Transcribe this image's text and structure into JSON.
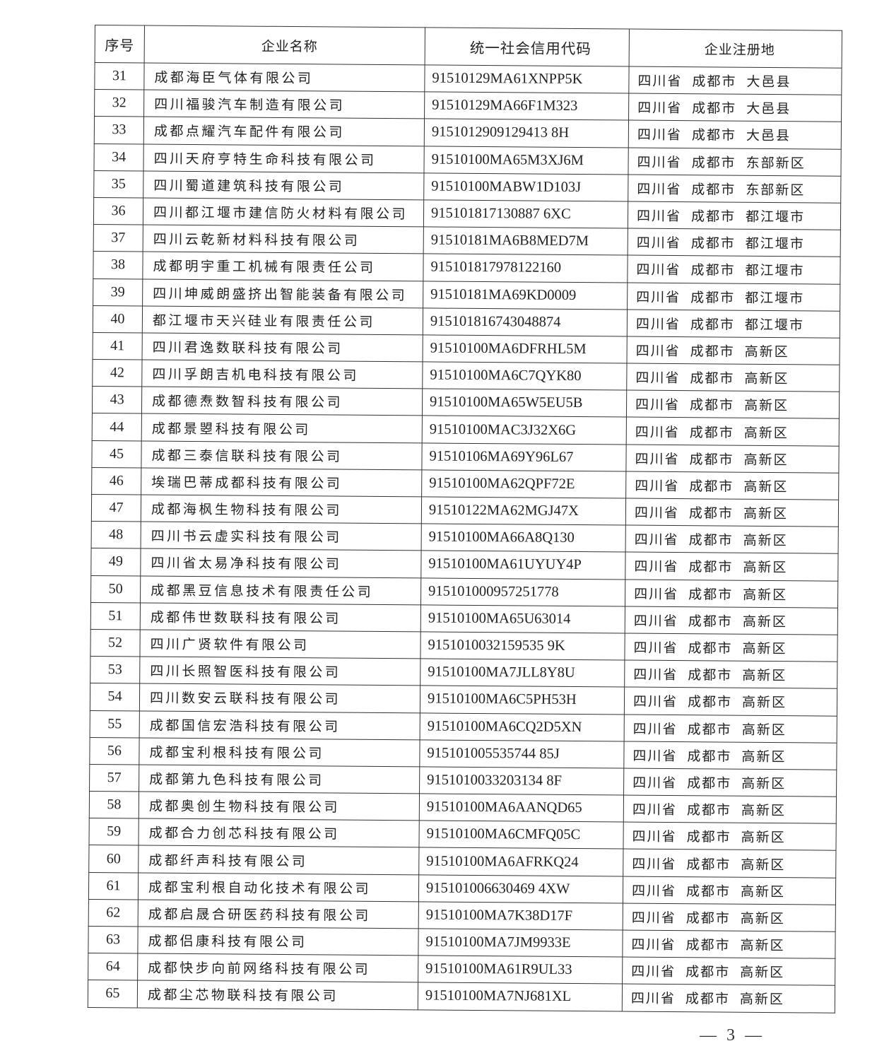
{
  "table": {
    "headers": [
      "序号",
      "企业名称",
      "统一社会信用代码",
      "企业注册地"
    ],
    "rows": [
      {
        "no": "31",
        "name": "成都海臣气体有限公司",
        "code": "91510129MA61XNPP5K",
        "province": "四川省",
        "city": "成都市",
        "district": "大邑县"
      },
      {
        "no": "32",
        "name": "四川福骏汽车制造有限公司",
        "code": "91510129MA66F1M323",
        "province": "四川省",
        "city": "成都市",
        "district": "大邑县"
      },
      {
        "no": "33",
        "name": "成都点耀汽车配件有限公司",
        "code": "9151012909129413 8H",
        "province": "四川省",
        "city": "成都市",
        "district": "大邑县"
      },
      {
        "no": "34",
        "name": "四川天府亨特生命科技有限公司",
        "code": "91510100MA65M3XJ6M",
        "province": "四川省",
        "city": "成都市",
        "district": "东部新区"
      },
      {
        "no": "35",
        "name": "四川蜀道建筑科技有限公司",
        "code": "91510100MABW1D103J",
        "province": "四川省",
        "city": "成都市",
        "district": "东部新区"
      },
      {
        "no": "36",
        "name": "四川都江堰市建信防火材料有限公司",
        "code": "915101817130887 6XC",
        "province": "四川省",
        "city": "成都市",
        "district": "都江堰市"
      },
      {
        "no": "37",
        "name": "四川云乾新材料科技有限公司",
        "code": "91510181MA6B8MED7M",
        "province": "四川省",
        "city": "成都市",
        "district": "都江堰市"
      },
      {
        "no": "38",
        "name": "成都明宇重工机械有限责任公司",
        "code": "915101817978122160",
        "province": "四川省",
        "city": "成都市",
        "district": "都江堰市"
      },
      {
        "no": "39",
        "name": "四川坤威朗盛挤出智能装备有限公司",
        "code": "91510181MA69KD0009",
        "province": "四川省",
        "city": "成都市",
        "district": "都江堰市"
      },
      {
        "no": "40",
        "name": "都江堰市天兴硅业有限责任公司",
        "code": "915101816743048874",
        "province": "四川省",
        "city": "成都市",
        "district": "都江堰市"
      },
      {
        "no": "41",
        "name": "四川君逸数联科技有限公司",
        "code": "91510100MA6DFRHL5M",
        "province": "四川省",
        "city": "成都市",
        "district": "高新区"
      },
      {
        "no": "42",
        "name": "四川孚朗吉机电科技有限公司",
        "code": "91510100MA6C7QYK80",
        "province": "四川省",
        "city": "成都市",
        "district": "高新区"
      },
      {
        "no": "43",
        "name": "成都德焘数智科技有限公司",
        "code": "91510100MA65W5EU5B",
        "province": "四川省",
        "city": "成都市",
        "district": "高新区"
      },
      {
        "no": "44",
        "name": "成都景曌科技有限公司",
        "code": "91510100MAC3J32X6G",
        "province": "四川省",
        "city": "成都市",
        "district": "高新区"
      },
      {
        "no": "45",
        "name": "成都三泰信联科技有限公司",
        "code": "91510106MA69Y96L67",
        "province": "四川省",
        "city": "成都市",
        "district": "高新区"
      },
      {
        "no": "46",
        "name": "埃瑞巴蒂成都科技有限公司",
        "code": "91510100MA62QPF72E",
        "province": "四川省",
        "city": "成都市",
        "district": "高新区"
      },
      {
        "no": "47",
        "name": "成都海枫生物科技有限公司",
        "code": "91510122MA62MGJ47X",
        "province": "四川省",
        "city": "成都市",
        "district": "高新区"
      },
      {
        "no": "48",
        "name": "四川书云虚实科技有限公司",
        "code": "91510100MA66A8Q130",
        "province": "四川省",
        "city": "成都市",
        "district": "高新区"
      },
      {
        "no": "49",
        "name": "四川省太易净科技有限公司",
        "code": "91510100MA61UYUY4P",
        "province": "四川省",
        "city": "成都市",
        "district": "高新区"
      },
      {
        "no": "50",
        "name": "成都黑豆信息技术有限责任公司",
        "code": "915101000957251778",
        "province": "四川省",
        "city": "成都市",
        "district": "高新区"
      },
      {
        "no": "51",
        "name": "成都伟世数联科技有限公司",
        "code": "91510100MA65U63014",
        "province": "四川省",
        "city": "成都市",
        "district": "高新区"
      },
      {
        "no": "52",
        "name": "四川广贤软件有限公司",
        "code": "9151010032159535 9K",
        "province": "四川省",
        "city": "成都市",
        "district": "高新区"
      },
      {
        "no": "53",
        "name": "四川长照智医科技有限公司",
        "code": "91510100MA7JLL8Y8U",
        "province": "四川省",
        "city": "成都市",
        "district": "高新区"
      },
      {
        "no": "54",
        "name": "四川数安云联科技有限公司",
        "code": "91510100MA6C5PH53H",
        "province": "四川省",
        "city": "成都市",
        "district": "高新区"
      },
      {
        "no": "55",
        "name": "成都国信宏浩科技有限公司",
        "code": "91510100MA6CQ2D5XN",
        "province": "四川省",
        "city": "成都市",
        "district": "高新区"
      },
      {
        "no": "56",
        "name": "成都宝利根科技有限公司",
        "code": "915101005535744 85J",
        "province": "四川省",
        "city": "成都市",
        "district": "高新区"
      },
      {
        "no": "57",
        "name": "成都第九色科技有限公司",
        "code": "9151010033203134 8F",
        "province": "四川省",
        "city": "成都市",
        "district": "高新区"
      },
      {
        "no": "58",
        "name": "成都奥创生物科技有限公司",
        "code": "91510100MA6AANQD65",
        "province": "四川省",
        "city": "成都市",
        "district": "高新区"
      },
      {
        "no": "59",
        "name": "成都合力创芯科技有限公司",
        "code": "91510100MA6CMFQ05C",
        "province": "四川省",
        "city": "成都市",
        "district": "高新区"
      },
      {
        "no": "60",
        "name": "成都纤声科技有限公司",
        "code": "91510100MA6AFRKQ24",
        "province": "四川省",
        "city": "成都市",
        "district": "高新区"
      },
      {
        "no": "61",
        "name": "成都宝利根自动化技术有限公司",
        "code": "915101006630469 4XW",
        "province": "四川省",
        "city": "成都市",
        "district": "高新区"
      },
      {
        "no": "62",
        "name": "成都启晟合研医药科技有限公司",
        "code": "91510100MA7K38D17F",
        "province": "四川省",
        "city": "成都市",
        "district": "高新区"
      },
      {
        "no": "63",
        "name": "成都侣康科技有限公司",
        "code": "91510100MA7JM9933E",
        "province": "四川省",
        "city": "成都市",
        "district": "高新区"
      },
      {
        "no": "64",
        "name": "成都快步向前网络科技有限公司",
        "code": "91510100MA61R9UL33",
        "province": "四川省",
        "city": "成都市",
        "district": "高新区"
      },
      {
        "no": "65",
        "name": "成都尘芯物联科技有限公司",
        "code": "91510100MA7NJ681XL",
        "province": "四川省",
        "city": "成都市",
        "district": "高新区"
      }
    ]
  },
  "page_number": "— 3 —"
}
